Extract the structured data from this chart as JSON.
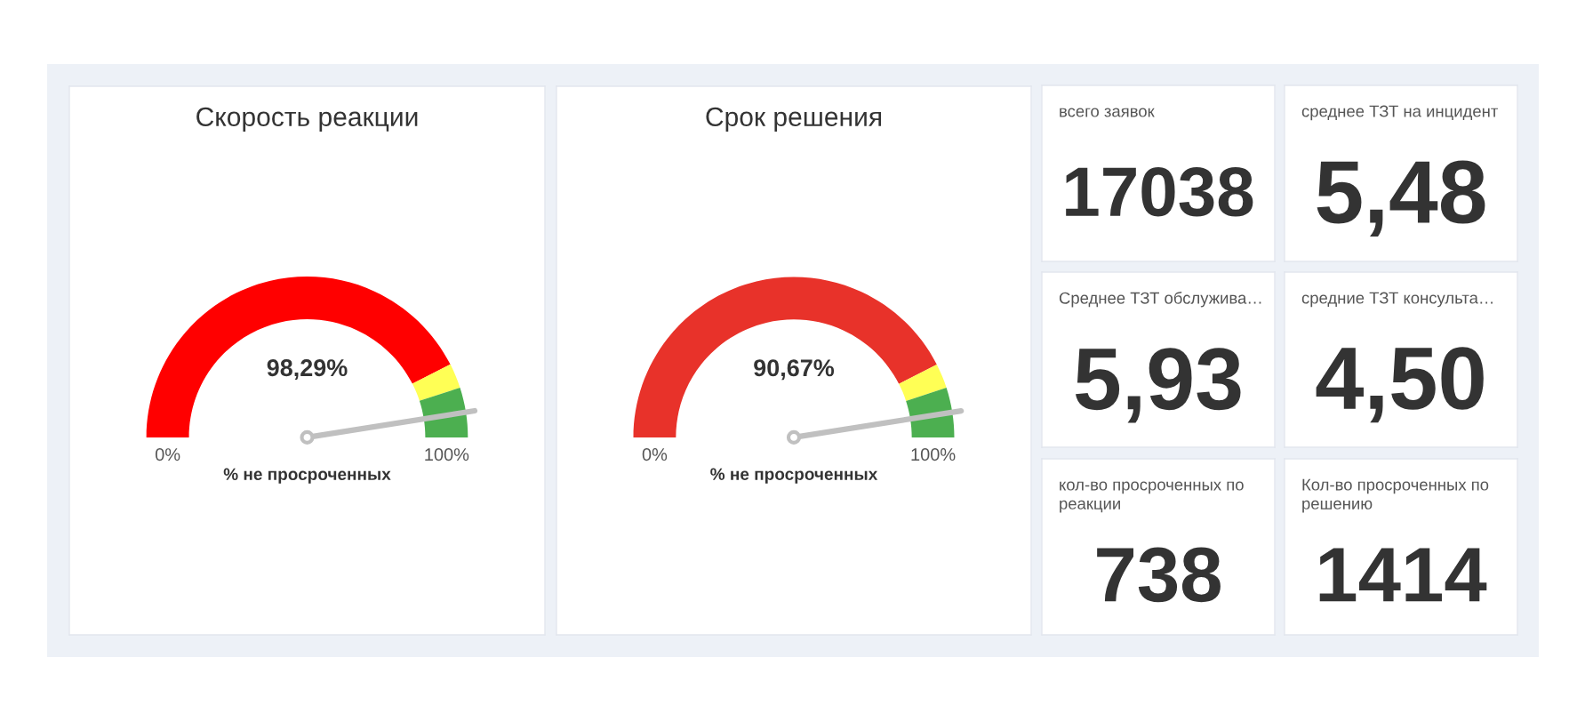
{
  "chart_data": [
    {
      "type": "donut",
      "title": "Скорость реакции",
      "categories": [
        null,
        null,
        null
      ],
      "values": [
        85,
        5,
        10
      ],
      "colors": [
        "#ff0000",
        "#ffff55",
        "#4caf50"
      ],
      "needle": null,
      "annotations": [
        "98,29%",
        "0%",
        "100%"
      ],
      "xlabel": "% не просроченных"
    },
    {
      "type": "donut",
      "title": "Срок решения",
      "categories": [
        null,
        null,
        null
      ],
      "values": [
        85,
        5,
        10
      ],
      "colors": [
        "#e8322a",
        "#ffff55",
        "#4caf50"
      ],
      "needle": null,
      "annotations": [
        "90,67%",
        "0%",
        "100%"
      ],
      "xlabel": "% не просроченных"
    },
    {
      "type": "other",
      "title": "всего заявок",
      "annotations": [
        "17038"
      ]
    },
    {
      "type": "other",
      "title": "среднее ТЗТ на инцидент",
      "annotations": [
        "5,48"
      ]
    },
    {
      "type": "other",
      "title": "Среднее ТЗТ обслужива…",
      "annotations": [
        "5,93"
      ]
    },
    {
      "type": "other",
      "title": "средние ТЗТ консульта…",
      "annotations": [
        "4,50"
      ]
    },
    {
      "type": "other",
      "title": "кол-во просроченных по реакции",
      "annotations": [
        "738"
      ]
    },
    {
      "type": "other",
      "title": "Кол-во просроченных по решению",
      "annotations": [
        "1414"
      ]
    }
  ]
}
